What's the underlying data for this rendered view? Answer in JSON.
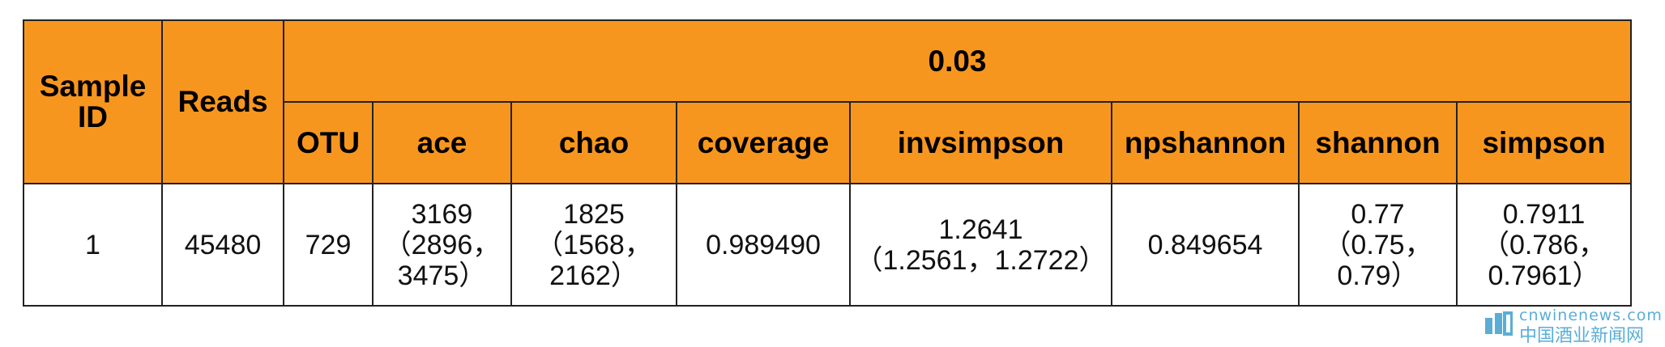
{
  "table": {
    "headers": {
      "sample_id": "Sample ID",
      "reads": "Reads",
      "group": "0.03",
      "columns": [
        "OTU",
        "ace",
        "chao",
        "coverage",
        "invsimpson",
        "npshannon",
        "shannon",
        "simpson"
      ]
    },
    "rows": [
      {
        "sample_id": "1",
        "reads": "45480",
        "values": [
          [
            "729"
          ],
          [
            "3169",
            "（2896，",
            "3475）"
          ],
          [
            "1825",
            "（1568，",
            "2162）"
          ],
          [
            "0.989490"
          ],
          [
            "1.2641",
            "（1.2561，1.2722）"
          ],
          [
            "0.849654"
          ],
          [
            "0.77",
            "（0.75，",
            "0.79）"
          ],
          [
            "0.7911",
            "（0.786，",
            "0.7961）"
          ]
        ]
      }
    ],
    "header_color": "#f7961e"
  },
  "watermark": {
    "en": "cnwinenews.com",
    "cn": "中国酒业新闻网",
    "color": "#5aaed6"
  }
}
